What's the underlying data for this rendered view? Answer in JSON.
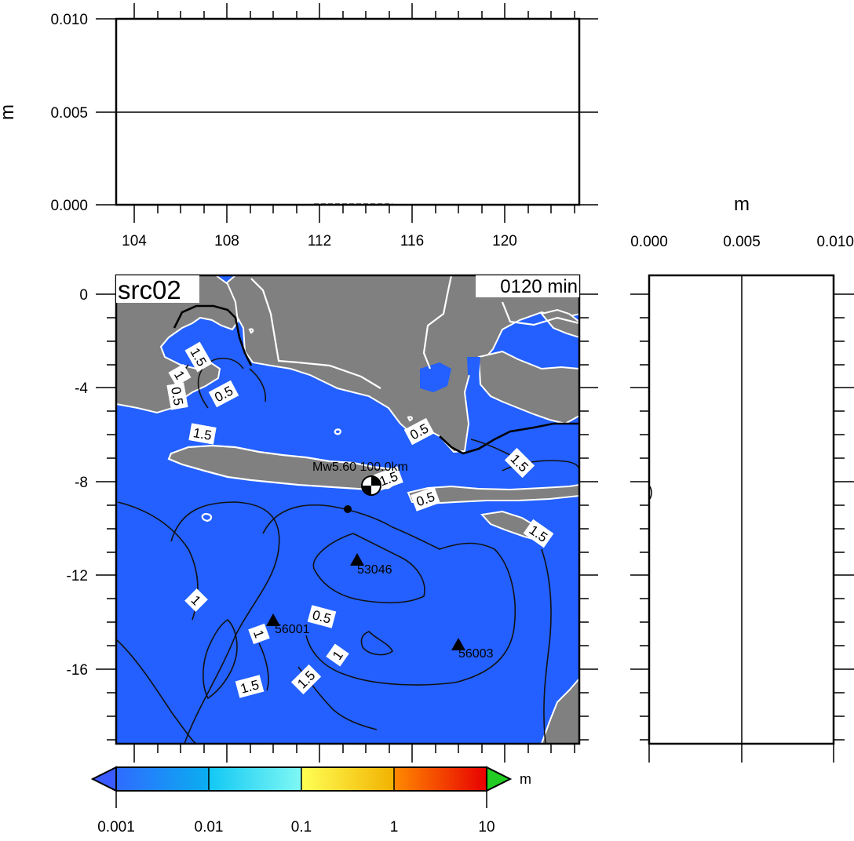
{
  "scenario_label": "src02",
  "time_label": "0120 min",
  "top_panel": {
    "ylabel": "m",
    "y_ticks": [
      "0.010",
      "0.005",
      "0.000"
    ],
    "x_ticks": [
      "104",
      "108",
      "112",
      "116",
      "120"
    ]
  },
  "right_panel": {
    "xlabel": "m",
    "x_ticks": [
      "0.000",
      "0.005",
      "0.010"
    ]
  },
  "map": {
    "y_ticks": [
      "0",
      "-4",
      "-8",
      "-12",
      "-16"
    ],
    "source_label": "Mw5.60 100.0km",
    "stations": [
      {
        "id": "53046"
      },
      {
        "id": "56001"
      },
      {
        "id": "56003"
      }
    ],
    "contour_labels": [
      "1.5",
      "1",
      "0.5",
      "0.5",
      "1.5",
      "0.5",
      "1.5",
      "0.5",
      "1.5",
      "1.5",
      "1",
      "1",
      "0.5",
      "1",
      "1.5",
      "1.5"
    ],
    "colors": {
      "ocean": "#2360ff",
      "land": "#808080",
      "coast": "#ffffff",
      "contour": "#111111"
    }
  },
  "colorbar": {
    "unit": "m",
    "tick_labels": [
      "0.001",
      "0.01",
      "0.1",
      "1",
      "10"
    ],
    "colors": [
      "#2f6bff",
      "#12b0f0",
      "#5ff5f0",
      "#ffff66",
      "#ff8800",
      "#e00000"
    ],
    "low_color": "#3a5bff",
    "high_color": "#22cc22"
  }
}
